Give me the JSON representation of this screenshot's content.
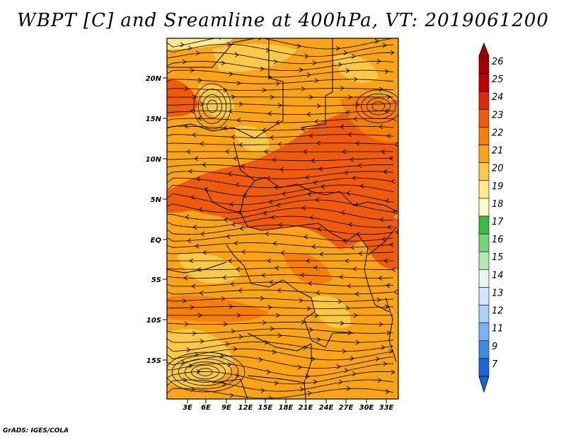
{
  "title": "WBPT [C] and Sreamline at 400hPa, VT: 2019061200",
  "footer": "GrADS: IGES/COLA",
  "map": {
    "lat_labels": [
      "20N",
      "15N",
      "10N",
      "5N",
      "EQ",
      "5S",
      "10S",
      "15S"
    ],
    "lon_labels": [
      "3E",
      "6E",
      "9E",
      "12E",
      "15E",
      "18E",
      "21E",
      "24E",
      "27E",
      "30E",
      "33E"
    ]
  },
  "colorbar": {
    "labels": [
      "26",
      "25",
      "24",
      "23",
      "22",
      "21",
      "20",
      "19",
      "18",
      "17",
      "16",
      "15",
      "14",
      "13",
      "12",
      "11",
      "9",
      "7"
    ],
    "colors": [
      "#a50000",
      "#c00000",
      "#dc2a06",
      "#f05a0c",
      "#f87e08",
      "#fca318",
      "#fcc848",
      "#fee98c",
      "#fff8c8",
      "#3cba3c",
      "#78d278",
      "#b4e6b4",
      "#e6f6ec",
      "#d2e6fa",
      "#a8d2f8",
      "#78b4f0",
      "#3c8ce6",
      "#1e64d2"
    ],
    "top_arrow_color": "#a50000",
    "bottom_arrow_color": "#1e64d2"
  },
  "field_colors": {
    "base": "#fca318",
    "light": "#fcc848",
    "dark": "#f87e08",
    "darker": "#f05a0c",
    "pale": "#fee98c"
  }
}
